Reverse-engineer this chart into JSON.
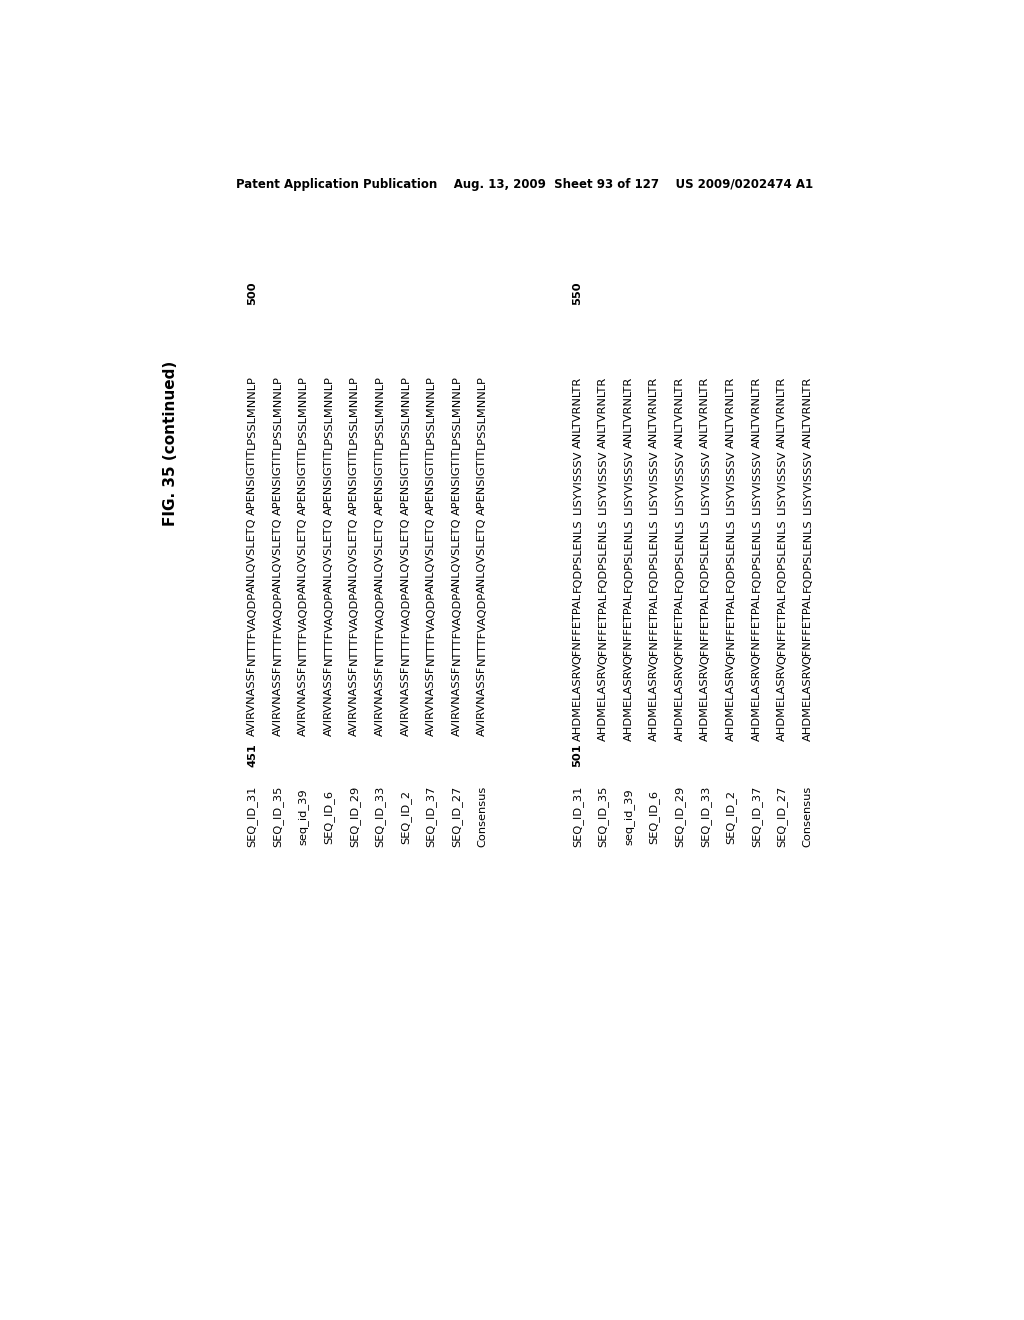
{
  "background_color": "#ffffff",
  "header_line": "Patent Application Publication    Aug. 13, 2009  Sheet 93 of 127    US 2009/0202474 A1",
  "figure_label": "FIG. 35 (continued)",
  "top_block": {
    "position_number": "451",
    "end_number": "500",
    "labels": [
      "SEQ_ID_31",
      "SEQ_ID_35",
      "seq_id_39",
      "SEQ_ID_6",
      "SEQ_ID_29",
      "SEQ_ID_33",
      "SEQ_ID_2",
      "SEQ_ID_37",
      "SEQ_ID_27",
      "Consensus"
    ],
    "seq_groups": [
      [
        "AVIRVNASSF",
        "AVIRVNASSF",
        "AVIRVNASSF",
        "AVIRVNASSF",
        "AVIRVNASSF",
        "AVIRVNASSF",
        "AVIRVNASSF",
        "AVIRVNASSF",
        "AVIRVNASSF",
        "AVIRVNASSF"
      ],
      [
        "NTTTFVAQDP",
        "NTTTFVAQDP",
        "NTTTFVAQDP",
        "NTTTFVAQDP",
        "NTTTFVAQDP",
        "NTTTFVAQDP",
        "NTTTFVAQDP",
        "NTTTFVAQDP",
        "NTTTFVAQDP",
        "NTTTFVAQDP"
      ],
      [
        "ANLQVSLETQ",
        "ANLQVSLETQ",
        "ANLQVSLETQ",
        "ANLQVSLETQ",
        "ANLQVSLETQ",
        "ANLQVSLETQ",
        "ANLQVSLETQ",
        "ANLQVSLETQ",
        "ANLQVSLETQ",
        "ANLQVSLETQ"
      ],
      [
        "APENSIGTIT",
        "APENSIGTIT",
        "APENSIGTIT",
        "APENSIGTIT",
        "APENSIGTIT",
        "APENSIGTIT",
        "APENSIGTIT",
        "APENSIGTIT",
        "APENSIGTIT",
        "APENSIGTIT"
      ],
      [
        "LPSSLMNNLP",
        "LPSSLMNNLP",
        "LPSSLMNNLP",
        "LPSSLMNNLP",
        "LPSSLMNNLP",
        "LPSSLMNNLP",
        "LPSSLMNNLP",
        "LPSSLMNNLP",
        "LPSSLMNNLP",
        "LPSSLMNNLP"
      ]
    ]
  },
  "bottom_block": {
    "position_number": "501",
    "end_number": "550",
    "labels": [
      "SEQ_ID_31",
      "SEQ_ID_35",
      "seq_id_39",
      "SEQ_ID_6",
      "SEQ_ID_29",
      "SEQ_ID_33",
      "SEQ_ID_2",
      "SEQ_ID_37",
      "SEQ_ID_27",
      "Consensus"
    ],
    "seq_groups": [
      [
        "AHDMELASRV",
        "AHDMELASRV",
        "AHDMELASRV",
        "AHDMELASRV",
        "AHDMELASRV",
        "AHDMELASRV",
        "AHDMELASRV",
        "AHDMELASRV",
        "AHDMELASRV",
        "AHDMELASRV"
      ],
      [
        "QFNFFETPAL",
        "QFNFFETPAL",
        "QFNFFETPAL",
        "QFNFFETPAL",
        "QFNFFETPAL",
        "QFNFFETPAL",
        "QFNFFETPAL",
        "QFNFFETPAL",
        "QFNFFETPAL",
        "QFNFFETPAL"
      ],
      [
        "FQDPSLENLS",
        "FQDPSLENLS",
        "FQDPSLENLS",
        "FQDPSLENLS",
        "FQDPSLENLS",
        "FQDPSLENLS",
        "FQDPSLENLS",
        "FQDPSLENLS",
        "FQDPSLENLS",
        "FQDPSLENLS"
      ],
      [
        "LISYVISSSV",
        "LISYVISSSV",
        "LISYVISSSV",
        "LISYVISSSV",
        "LISYVISSSV",
        "LISYVISSSV",
        "LISYVISSSV",
        "LISYVISSSV",
        "LISYVISSSV",
        "LISYVISSSV"
      ],
      [
        "ANLTVRNLTR",
        "ANLTVRNLTR",
        "ANLTVRNLTR",
        "ANLTVRNLTR",
        "ANLTVRNLTR",
        "ANLTVRNLTR",
        "ANLTVRNLTR",
        "ANLTVRNLTR",
        "ANLTVRNLTR",
        "ANLTVRNLTR"
      ]
    ]
  },
  "top_block_end_number": "50",
  "bottom_block_end_number": "50"
}
